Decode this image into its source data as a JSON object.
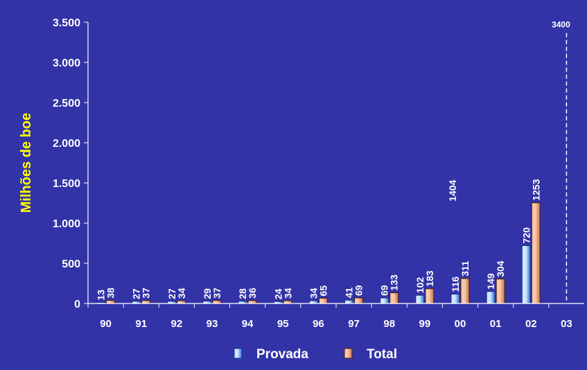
{
  "colors": {
    "background": "#3333a8",
    "axis": "#ffffff",
    "ylabel": "#ffff00",
    "provada_light": "#cfe9ff",
    "provada_dark": "#2a74d6",
    "total_light": "#f6c9a8",
    "total_dark": "#c9704a"
  },
  "chart_data": {
    "type": "bar",
    "categories": [
      "90",
      "91",
      "92",
      "93",
      "94",
      "95",
      "96",
      "97",
      "98",
      "99",
      "00",
      "01",
      "02",
      "03"
    ],
    "series": [
      {
        "name": "Provada",
        "values": [
          13,
          27,
          27,
          29,
          28,
          24,
          34,
          41,
          69,
          102,
          116,
          149,
          720,
          null
        ]
      },
      {
        "name": "Total",
        "values": [
          38,
          37,
          34,
          37,
          36,
          34,
          65,
          69,
          133,
          183,
          311,
          304,
          1253,
          null
        ]
      }
    ],
    "ylabel": "Milhões de boe",
    "xlabel": "",
    "ylim": [
      0,
      3500
    ],
    "yticks": [
      0,
      500,
      1000,
      1500,
      2000,
      2500,
      3000,
      3500
    ],
    "ytick_labels": [
      "0",
      "500",
      "1.000",
      "1.500",
      "2.000",
      "2.500",
      "3.000",
      "3.500"
    ],
    "annotations": [
      {
        "text": "1404",
        "x": "00",
        "y": 1404
      },
      {
        "text": "3400",
        "x": "03",
        "y": 3400
      }
    ],
    "legend": [
      "Provada",
      "Total"
    ],
    "legend_position": "bottom",
    "grid": false
  }
}
